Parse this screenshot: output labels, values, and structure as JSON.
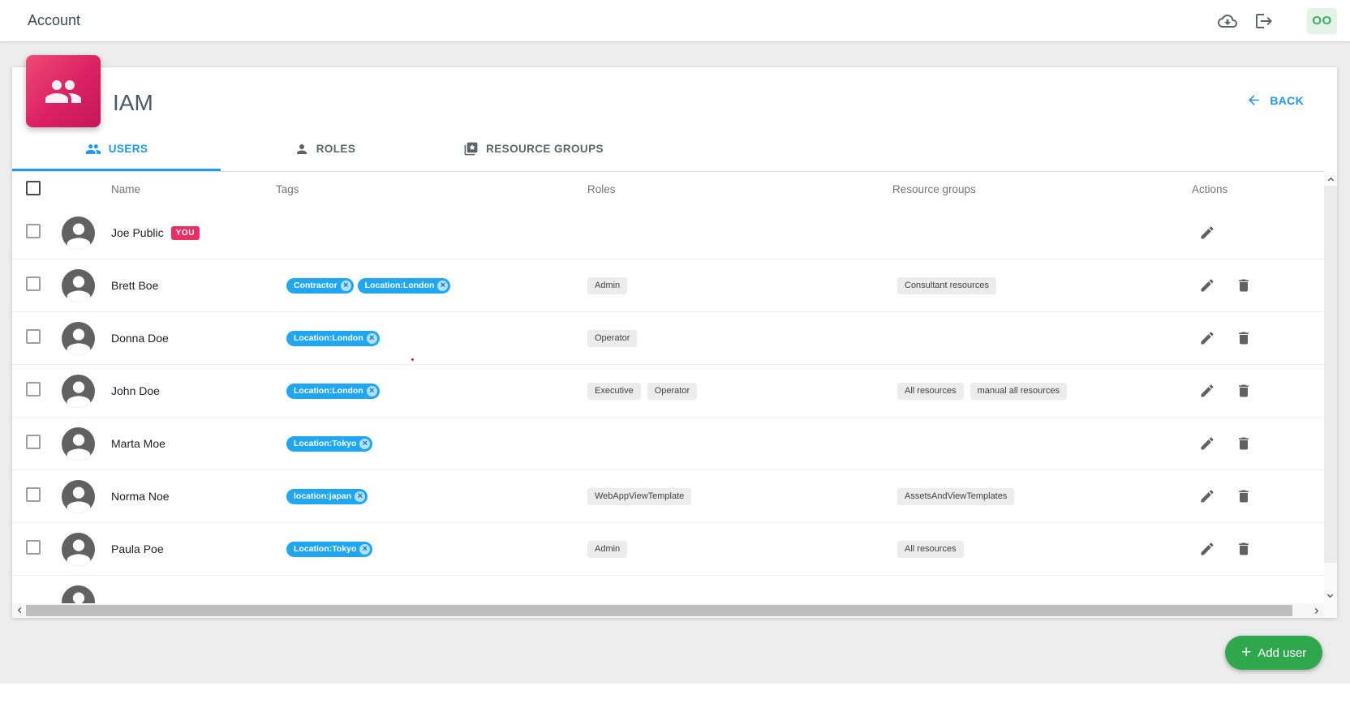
{
  "topbar": {
    "title": "Account",
    "account_initials": "OO",
    "icons": [
      "cloud-download-icon",
      "logout-icon"
    ]
  },
  "header": {
    "title": "IAM",
    "back_label": "BACK"
  },
  "tabs": [
    {
      "label": "USERS",
      "active": true
    },
    {
      "label": "ROLES",
      "active": false
    },
    {
      "label": "RESOURCE GROUPS",
      "active": false
    }
  ],
  "table": {
    "columns": [
      "Name",
      "Tags",
      "Roles",
      "Resource groups",
      "Actions"
    ]
  },
  "you_badge_label": "YOU",
  "users": [
    {
      "name": "Joe Public",
      "is_you": true,
      "tags": [],
      "roles": [],
      "resource_groups": [],
      "actions": [
        "edit"
      ]
    },
    {
      "name": "Brett Boe",
      "is_you": false,
      "tags": [
        "Contractor",
        "Location:London"
      ],
      "roles": [
        "Admin"
      ],
      "resource_groups": [
        "Consultant resources"
      ],
      "actions": [
        "edit",
        "delete"
      ]
    },
    {
      "name": "Donna Doe",
      "is_you": false,
      "tags": [
        "Location:London"
      ],
      "roles": [
        "Operator"
      ],
      "resource_groups": [],
      "actions": [
        "edit",
        "delete"
      ]
    },
    {
      "name": "John Doe",
      "is_you": false,
      "tags": [
        "Location:London"
      ],
      "roles": [
        "Executive",
        "Operator"
      ],
      "resource_groups": [
        "All resources",
        "manual all resources"
      ],
      "actions": [
        "edit",
        "delete"
      ]
    },
    {
      "name": "Marta Moe",
      "is_you": false,
      "tags": [
        "Location:Tokyo"
      ],
      "roles": [],
      "resource_groups": [],
      "actions": [
        "edit",
        "delete"
      ]
    },
    {
      "name": "Norma Noe",
      "is_you": false,
      "tags": [
        "location:japan"
      ],
      "roles": [
        "WebAppViewTemplate"
      ],
      "resource_groups": [
        "AssetsAndViewTemplates"
      ],
      "actions": [
        "edit",
        "delete"
      ]
    },
    {
      "name": "Paula Poe",
      "is_you": false,
      "tags": [
        "Location:Tokyo"
      ],
      "roles": [
        "Admin"
      ],
      "resource_groups": [
        "All resources"
      ],
      "actions": [
        "edit",
        "delete"
      ]
    }
  ],
  "partial_next_row_visible": true,
  "add_user_button": {
    "plus": "+",
    "label": "Add user"
  },
  "colors": {
    "accent_blue": "#2196F3",
    "tag_chip_blue": "#1FA7F3",
    "iam_icon_pink": "#D81B60",
    "you_badge_pink": "#EC2E63",
    "add_user_green": "#2FA84D",
    "account_badge_bg": "#E3F4E6",
    "account_badge_text": "#3BAD5C"
  }
}
